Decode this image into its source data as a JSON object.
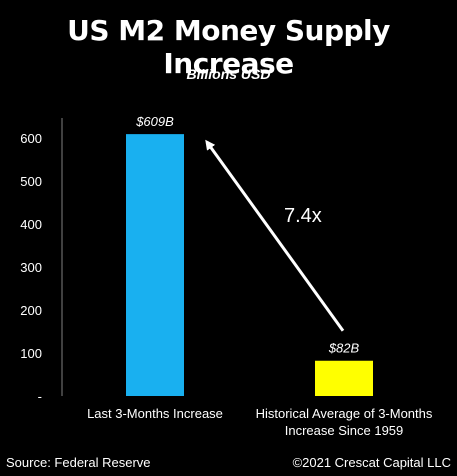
{
  "chart_data": {
    "type": "bar",
    "title": "US M2 Money Supply Increase",
    "subtitle": "Billions USD",
    "categories": [
      "Last 3-Months Increase",
      "Historical Average of 3-Months Increase Since 1959"
    ],
    "category_lines": [
      [
        "Last 3-Months Increase"
      ],
      [
        "Historical Average of 3-Months",
        "Increase Since 1959"
      ]
    ],
    "values": [
      609,
      82
    ],
    "data_labels": [
      "$609B",
      "$82B"
    ],
    "bar_colors": [
      "#19b0f0",
      "#ffff00"
    ],
    "yticks": [
      "-",
      "100",
      "200",
      "300",
      "400",
      "500",
      "600"
    ],
    "ylim": [
      0,
      650
    ],
    "grid": false,
    "annotation": {
      "text": "7.4x",
      "arrow_from": "bar-2-top",
      "arrow_to": "bar-1-top"
    }
  },
  "footer": {
    "source": "Source: Federal Reserve",
    "copyright": "©2021 Crescat Capital LLC"
  },
  "colors": {
    "background": "#000000",
    "text": "#ffffff",
    "axis": "#7f7f7f"
  }
}
